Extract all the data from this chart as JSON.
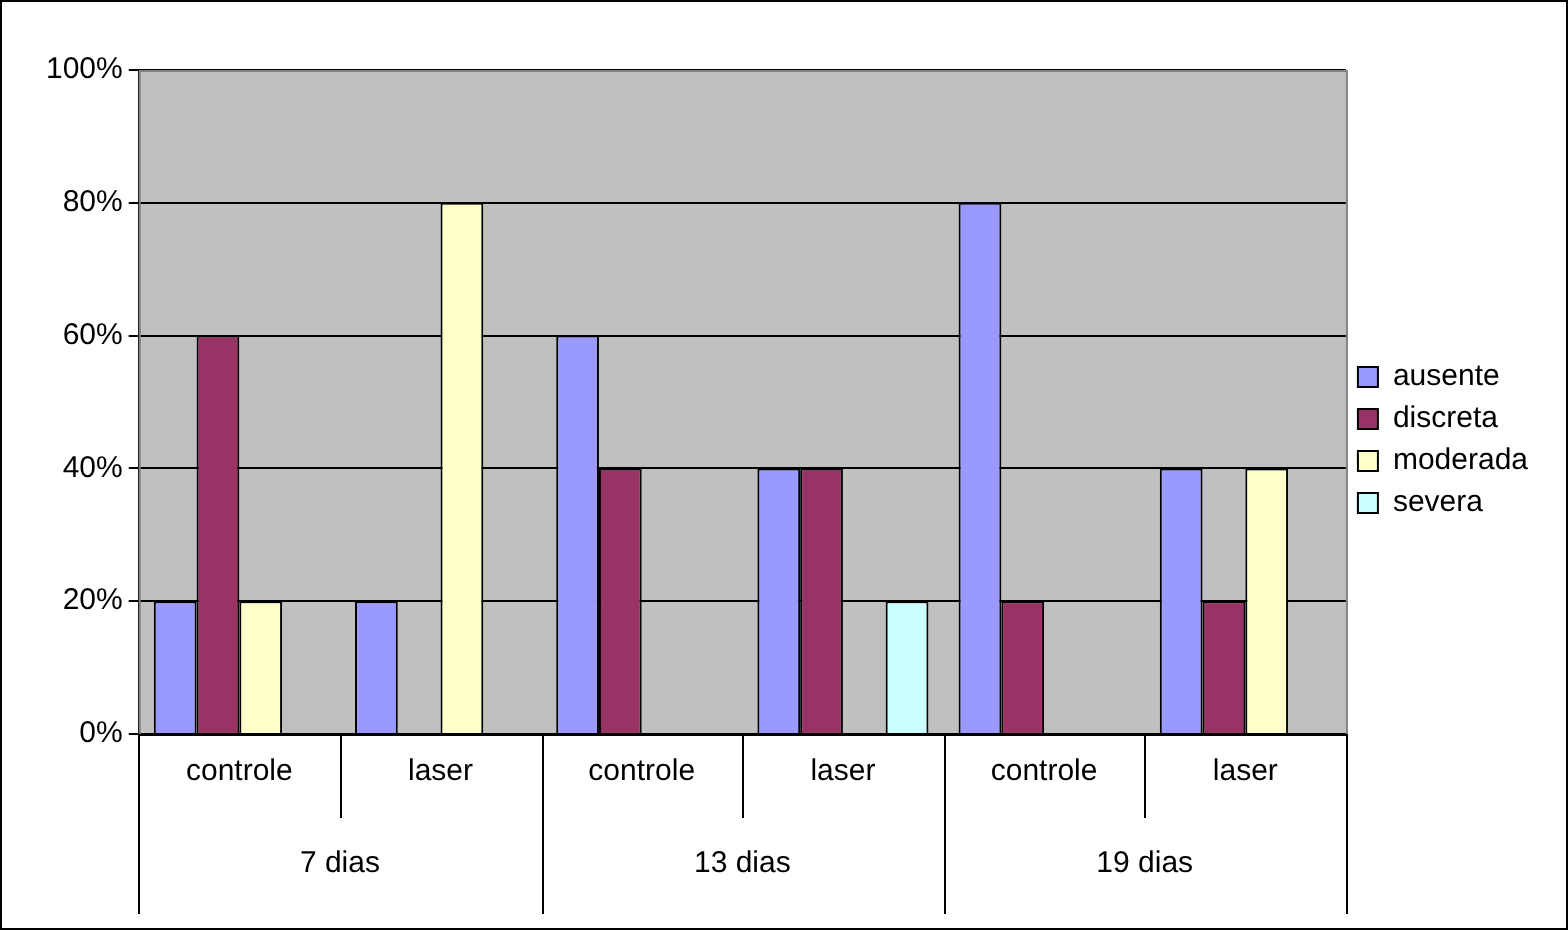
{
  "chart_data": {
    "type": "bar",
    "categories": [
      "controle",
      "laser",
      "controle",
      "laser",
      "controle",
      "laser"
    ],
    "series": [
      {
        "name": "ausente",
        "color": "#9999ff",
        "values": [
          20,
          20,
          60,
          40,
          80,
          40
        ]
      },
      {
        "name": "discreta",
        "color": "#993366",
        "values": [
          60,
          0,
          40,
          40,
          20,
          20
        ]
      },
      {
        "name": "moderada",
        "color": "#ffffcc",
        "values": [
          20,
          80,
          0,
          0,
          0,
          40
        ]
      },
      {
        "name": "severa",
        "color": "#ccffff",
        "values": [
          0,
          0,
          0,
          20,
          0,
          0
        ]
      }
    ],
    "ylim": [
      0,
      100
    ],
    "yticks": [
      {
        "value": 0,
        "label": "0%"
      },
      {
        "value": 20,
        "label": "20%"
      },
      {
        "value": 40,
        "label": "40%"
      },
      {
        "value": 60,
        "label": "60%"
      },
      {
        "value": 80,
        "label": "80%"
      },
      {
        "value": 100,
        "label": "100%"
      }
    ],
    "grid": "y",
    "legend": "right",
    "annotations": [
      "7 dias",
      "13 dias",
      "19 dias"
    ]
  }
}
